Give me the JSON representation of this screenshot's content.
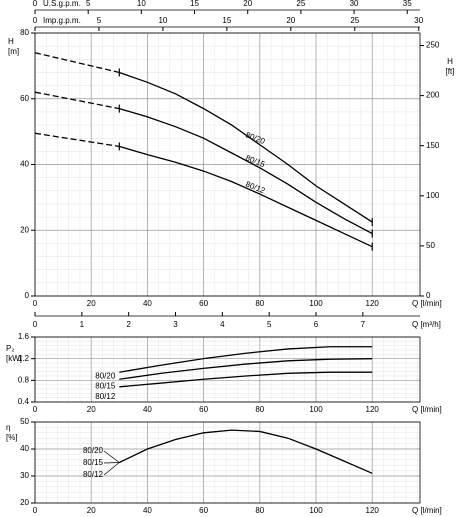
{
  "chart_data": [
    {
      "type": "line",
      "ylabel": "H",
      "yunit": "[m]",
      "y2label": "H",
      "y2unit": "[ft]",
      "xlabel": "Q [l/min]",
      "xlim": [
        0,
        137
      ],
      "xticks": [
        0,
        20,
        40,
        60,
        80,
        100,
        120
      ],
      "ylim": [
        0,
        80
      ],
      "yticks": [
        0,
        20,
        40,
        60,
        80
      ],
      "y2lim": [
        0,
        262.5
      ],
      "y2ticks": [
        0,
        50,
        100,
        150,
        200,
        250
      ],
      "grid": true,
      "top_axes": [
        {
          "label": "U.S.g.p.m.",
          "xlim": [
            0,
            36.2
          ],
          "xticks": [
            0,
            5,
            10,
            15,
            20,
            25,
            30,
            35
          ]
        },
        {
          "label": "Imp.g.p.m.",
          "xlim": [
            0,
            30.1
          ],
          "xticks": [
            0,
            5,
            10,
            15,
            20,
            25,
            30
          ]
        }
      ],
      "series": [
        {
          "name": "80/20",
          "color": "#000000",
          "x": [
            30,
            40,
            50,
            60,
            70,
            80,
            90,
            100,
            110,
            120
          ],
          "values": [
            68,
            65,
            61.5,
            57,
            52,
            46,
            40,
            33.5,
            28,
            22.5
          ]
        },
        {
          "color": "#000000",
          "dashed": true,
          "x": [
            0,
            30
          ],
          "values": [
            74,
            68
          ]
        },
        {
          "name": "80/15",
          "color": "#000000",
          "x": [
            30,
            40,
            50,
            60,
            70,
            80,
            90,
            100,
            110,
            120
          ],
          "values": [
            57,
            54.5,
            51.5,
            48,
            43.5,
            39,
            34,
            28.5,
            23.5,
            19
          ]
        },
        {
          "color": "#000000",
          "dashed": true,
          "x": [
            0,
            30
          ],
          "values": [
            62,
            57
          ]
        },
        {
          "name": "80/12",
          "color": "#000000",
          "x": [
            30,
            40,
            50,
            60,
            70,
            80,
            90,
            100,
            110,
            120
          ],
          "values": [
            45.5,
            43,
            40.7,
            38,
            34.8,
            31,
            27,
            23,
            19,
            15
          ]
        },
        {
          "color": "#000000",
          "dashed": true,
          "x": [
            0,
            30
          ],
          "values": [
            49.5,
            45.5
          ]
        }
      ]
    },
    {
      "type": "line",
      "ylabel": "P₂",
      "yunit": "[kW]",
      "xlabel": "Q [l/min]",
      "xlim": [
        0,
        137
      ],
      "xticks": [
        0,
        20,
        40,
        60,
        80,
        100,
        120
      ],
      "ylim": [
        0.4,
        1.6
      ],
      "yticks": [
        0.4,
        0.8,
        1.2,
        1.6
      ],
      "grid": true,
      "top_axes": [
        {
          "label": "Q [m³/h]",
          "xlim": [
            0,
            8.22
          ],
          "xticks": [
            0,
            1,
            2,
            3,
            4,
            5,
            6,
            7
          ]
        }
      ],
      "annotations": [
        "80/20",
        "80/15",
        "80/12"
      ],
      "series": [
        {
          "color": "#000000",
          "x": [
            30,
            45,
            60,
            75,
            90,
            105,
            120
          ],
          "values": [
            0.95,
            1.08,
            1.2,
            1.3,
            1.38,
            1.42,
            1.42
          ]
        },
        {
          "color": "#000000",
          "x": [
            30,
            45,
            60,
            75,
            90,
            105,
            120
          ],
          "values": [
            0.82,
            0.93,
            1.02,
            1.1,
            1.16,
            1.19,
            1.2
          ]
        },
        {
          "color": "#000000",
          "x": [
            30,
            45,
            60,
            75,
            90,
            105,
            120
          ],
          "values": [
            0.68,
            0.75,
            0.82,
            0.88,
            0.93,
            0.95,
            0.95
          ]
        }
      ]
    },
    {
      "type": "line",
      "ylabel": "η",
      "yunit": "[%]",
      "xlabel": "Q [l/min]",
      "xlim": [
        0,
        137
      ],
      "xticks": [
        0,
        20,
        40,
        60,
        80,
        100,
        120
      ],
      "ylim": [
        20,
        50
      ],
      "yticks": [
        20,
        30,
        40,
        50
      ],
      "grid": true,
      "annotations": [
        "80/20",
        "80/15",
        "80/12"
      ],
      "series": [
        {
          "color": "#000000",
          "x": [
            30,
            40,
            50,
            60,
            70,
            80,
            90,
            100,
            110,
            120
          ],
          "values": [
            35,
            40,
            43.5,
            46,
            47,
            46.5,
            44,
            40,
            35.5,
            31
          ]
        }
      ]
    }
  ]
}
